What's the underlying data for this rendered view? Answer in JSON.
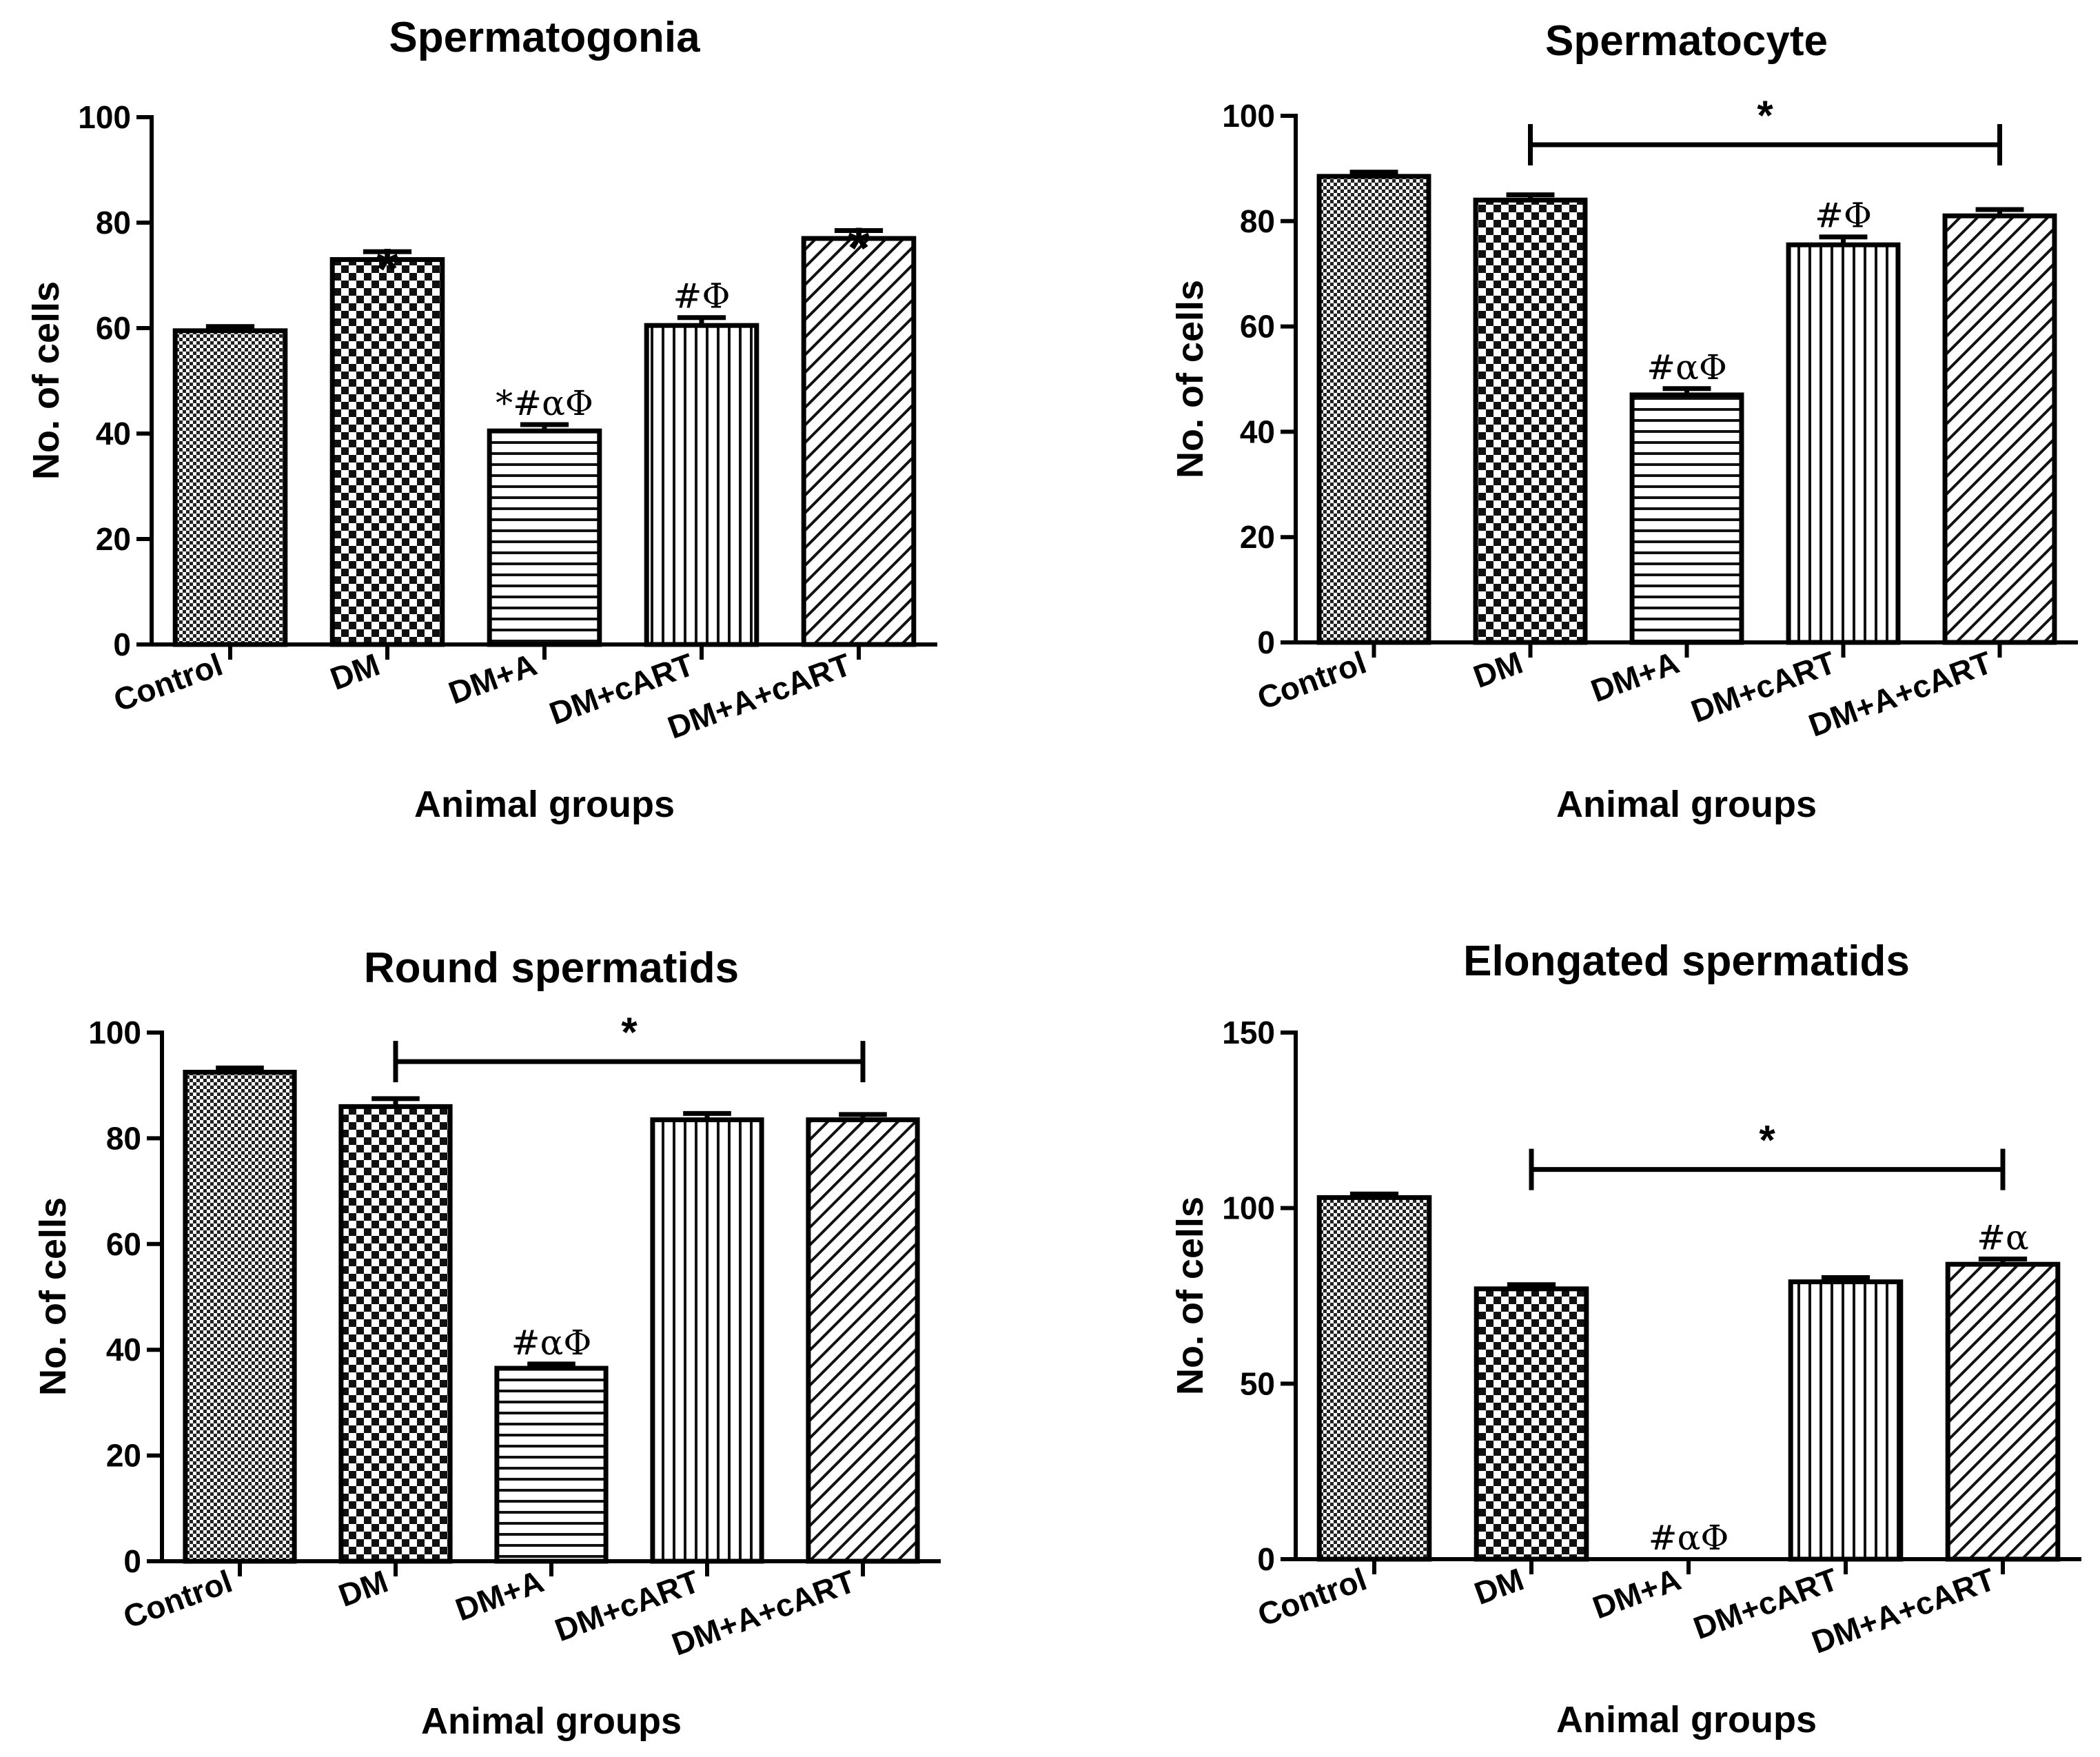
{
  "chart_data": [
    {
      "type": "bar",
      "title": "Spermatogonia",
      "xlabel": "Animal groups",
      "ylabel": "No. of cells",
      "ylim": [
        0,
        100
      ],
      "yticks": [
        0,
        20,
        40,
        60,
        80,
        100
      ],
      "grid": false,
      "categories": [
        "Control",
        "DM",
        "DM+A",
        "DM+cART",
        "DM+A+cART"
      ],
      "values": [
        59.5,
        73,
        40.5,
        60.5,
        77
      ],
      "errors": [
        0.8,
        1.5,
        1.2,
        1.5,
        1.5
      ],
      "patterns": [
        "fine-check",
        "check",
        "horizontal",
        "vertical",
        "diagonal"
      ],
      "annotations": [
        "",
        "*",
        "*#αΦ",
        "#Φ",
        "*"
      ],
      "annotation_styles": [
        "",
        "big",
        "normal",
        "normal",
        "big"
      ]
    },
    {
      "type": "bar",
      "title": "Spermatocyte",
      "xlabel": "Animal groups",
      "ylabel": "No. of cells",
      "ylim": [
        0,
        100
      ],
      "yticks": [
        0,
        20,
        40,
        60,
        80,
        100
      ],
      "grid": false,
      "categories": [
        "Control",
        "DM",
        "DM+A",
        "DM+cART",
        "DM+A+cART"
      ],
      "values": [
        88.5,
        84,
        47,
        75.5,
        81
      ],
      "errors": [
        0.8,
        1,
        1.2,
        1.5,
        1.2
      ],
      "patterns": [
        "fine-check",
        "check",
        "horizontal",
        "vertical",
        "diagonal"
      ],
      "annotations": [
        "",
        "",
        "#αΦ",
        "#Φ",
        ""
      ],
      "annotation_styles": [
        "",
        "",
        "normal",
        "normal",
        ""
      ],
      "bracket": {
        "from": 1,
        "to": 4,
        "y": 94.5,
        "label": "*"
      }
    },
    {
      "type": "bar",
      "title": "Round spermatids",
      "xlabel": "Animal groups",
      "ylabel": "No. of cells",
      "ylim": [
        0,
        100
      ],
      "yticks": [
        0,
        20,
        40,
        60,
        80,
        100
      ],
      "grid": false,
      "categories": [
        "Control",
        "DM",
        "DM+A",
        "DM+cART",
        "DM+A+cART"
      ],
      "values": [
        92.5,
        86,
        36.5,
        83.5,
        83.5
      ],
      "errors": [
        0.8,
        1.5,
        0.8,
        1.2,
        1
      ],
      "patterns": [
        "fine-check",
        "check",
        "horizontal",
        "vertical",
        "diagonal"
      ],
      "annotations": [
        "",
        "",
        "#αΦ",
        "",
        ""
      ],
      "annotation_styles": [
        "",
        "",
        "normal",
        "",
        ""
      ],
      "bracket": {
        "from": 1,
        "to": 4,
        "y": 94.5,
        "label": "*"
      }
    },
    {
      "type": "bar",
      "title": "Elongated spermatids",
      "xlabel": "Animal groups",
      "ylabel": "No. of cells",
      "ylim": [
        0,
        150
      ],
      "yticks": [
        0,
        50,
        100,
        150
      ],
      "grid": false,
      "categories": [
        "Control",
        "DM",
        "DM+A",
        "DM+cART",
        "DM+A+cART"
      ],
      "values": [
        103,
        77,
        0,
        79,
        84
      ],
      "errors": [
        1,
        1.2,
        0,
        1.2,
        1.5
      ],
      "patterns": [
        "fine-check",
        "check",
        "horizontal",
        "vertical",
        "diagonal"
      ],
      "annotations": [
        "",
        "",
        "#αΦ",
        "",
        "#α"
      ],
      "annotation_styles": [
        "",
        "",
        "normal",
        "",
        "normal"
      ],
      "bracket": {
        "from": 1,
        "to": 4,
        "y": 111,
        "label": "*"
      }
    }
  ]
}
